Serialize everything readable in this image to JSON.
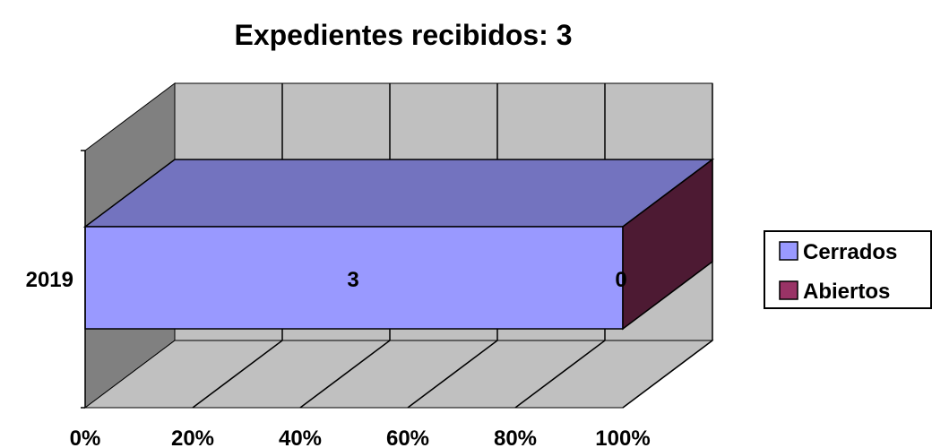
{
  "chart_data": {
    "type": "bar",
    "orientation": "horizontal",
    "stacked": "percent",
    "three_d": true,
    "title": "Expedientes recibidos: 3",
    "categories": [
      "2019"
    ],
    "series": [
      {
        "name": "Cerrados",
        "values": [
          3
        ],
        "color": "#9999ff",
        "top_color": "#7373bf",
        "side_color": "#4d1a33"
      },
      {
        "name": "Abiertos",
        "values": [
          0
        ],
        "color": "#993366",
        "top_color": "#732650",
        "side_color": "#4d1a33"
      }
    ],
    "data_labels": [
      "3",
      "0"
    ],
    "x_ticks": [
      "0%",
      "20%",
      "40%",
      "60%",
      "80%",
      "100%"
    ],
    "xlim": [
      0,
      100
    ],
    "grid": true,
    "legend": "right",
    "colors": {
      "back_wall": "#c0c0c0",
      "side_wall": "#808080",
      "floor": "#c0c0c0"
    }
  }
}
